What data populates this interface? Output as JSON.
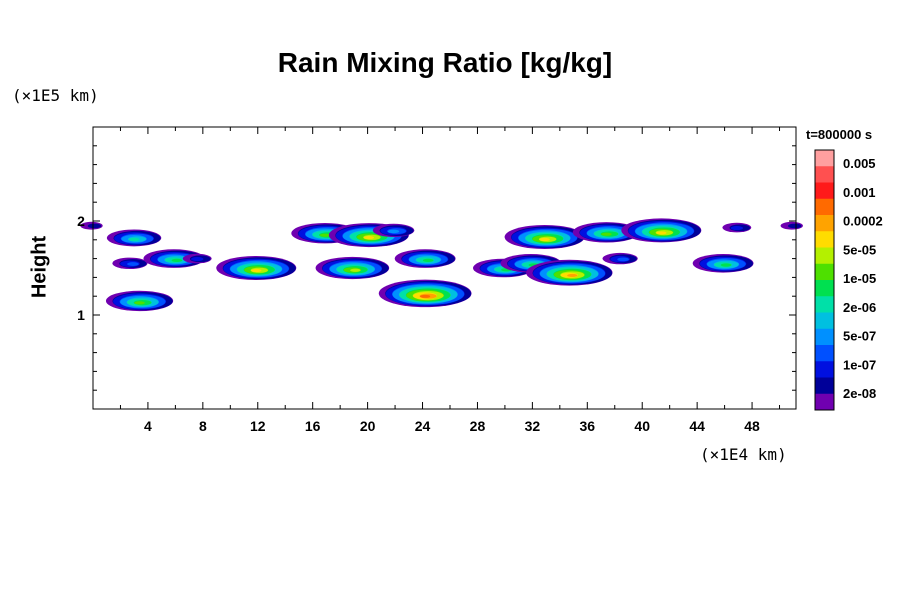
{
  "chart_data": {
    "type": "heatmap",
    "title": "Rain Mixing Ratio [kg/kg]",
    "ylabel": "Height",
    "y_unit": "(×1E5 km)",
    "x_unit": "(×1E4 km)",
    "time_label": "t=800000 s",
    "xlim": [
      0,
      51.2
    ],
    "ylim": [
      0,
      3
    ],
    "x_ticks": [
      4,
      8,
      12,
      16,
      20,
      24,
      28,
      32,
      36,
      40,
      44,
      48
    ],
    "y_ticks": [
      1,
      2
    ],
    "grid": false,
    "legend": "right colorbar",
    "colorbar": {
      "labels": [
        "0.005",
        "0.001",
        "0.0002",
        "5e-05",
        "1e-05",
        "2e-06",
        "5e-07",
        "1e-07",
        "2e-08"
      ],
      "colors": [
        "#ff9f9f",
        "#ff5050",
        "#ff1a1a",
        "#ff6a00",
        "#ffa300",
        "#ffdc00",
        "#b4f000",
        "#4ee000",
        "#00e050",
        "#00e0a8",
        "#00c0e0",
        "#0090ff",
        "#0050ff",
        "#0010e0",
        "#000099",
        "#7000b0"
      ]
    },
    "regions": [
      {
        "x": 0.0,
        "y": 1.95,
        "level": 1
      },
      {
        "x": 3.1,
        "y": 1.82,
        "level": 6
      },
      {
        "x": 2.8,
        "y": 1.55,
        "level": 3
      },
      {
        "x": 3.5,
        "y": 1.15,
        "level": 8
      },
      {
        "x": 6.0,
        "y": 1.6,
        "level": 7
      },
      {
        "x": 7.7,
        "y": 1.6,
        "level": 2
      },
      {
        "x": 12.0,
        "y": 1.5,
        "level": 10
      },
      {
        "x": 17.0,
        "y": 1.87,
        "level": 8
      },
      {
        "x": 20.2,
        "y": 1.85,
        "level": 10
      },
      {
        "x": 19.0,
        "y": 1.5,
        "level": 9
      },
      {
        "x": 22.0,
        "y": 1.9,
        "level": 4
      },
      {
        "x": 24.3,
        "y": 1.6,
        "level": 7
      },
      {
        "x": 24.3,
        "y": 1.23,
        "level": 12
      },
      {
        "x": 30.0,
        "y": 1.5,
        "level": 7
      },
      {
        "x": 33.0,
        "y": 1.83,
        "level": 10
      },
      {
        "x": 32.0,
        "y": 1.55,
        "level": 7
      },
      {
        "x": 34.8,
        "y": 1.45,
        "level": 11
      },
      {
        "x": 37.5,
        "y": 1.88,
        "level": 8
      },
      {
        "x": 38.5,
        "y": 1.6,
        "level": 3
      },
      {
        "x": 41.5,
        "y": 1.9,
        "level": 10
      },
      {
        "x": 46.0,
        "y": 1.55,
        "level": 7
      },
      {
        "x": 47.0,
        "y": 1.93,
        "level": 2
      },
      {
        "x": 51.0,
        "y": 1.95,
        "level": 1
      }
    ]
  }
}
